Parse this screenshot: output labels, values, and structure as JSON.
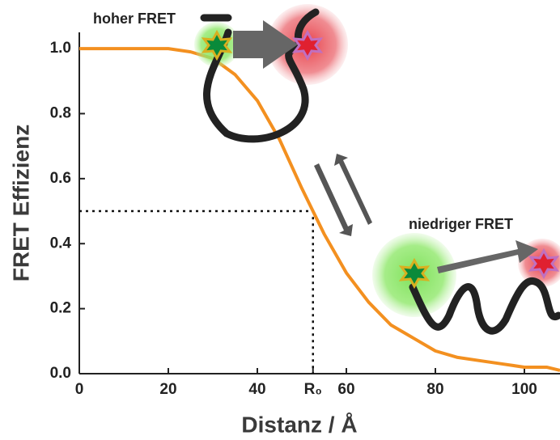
{
  "chart_data": {
    "type": "line",
    "xlabel": "Distanz / Å",
    "ylabel": "FRET Effizienz",
    "annotations": [
      "hoher FRET",
      "niedriger FRET"
    ],
    "x": [
      0,
      5,
      10,
      15,
      20,
      25,
      30,
      35,
      40,
      45,
      50,
      55,
      60,
      65,
      70,
      75,
      80,
      85,
      90,
      95,
      100,
      105,
      108
    ],
    "values": [
      1.0,
      1.0,
      1.0,
      1.0,
      1.0,
      0.99,
      0.97,
      0.92,
      0.84,
      0.72,
      0.57,
      0.43,
      0.31,
      0.22,
      0.15,
      0.11,
      0.07,
      0.05,
      0.04,
      0.03,
      0.02,
      0.02,
      0.01
    ],
    "color": "#f39020",
    "xlim": [
      0,
      108
    ],
    "ylim": [
      0,
      1.05
    ],
    "xticks": [
      0,
      20,
      40,
      {
        "value": 52.5,
        "label": "R₀"
      },
      60,
      80,
      100
    ],
    "yticks": [
      {
        "value": 0,
        "label": "0.0"
      },
      0.2,
      0.4,
      0.6,
      0.8,
      {
        "value": 1,
        "label": "1.0"
      }
    ],
    "guide": {
      "x": 52.5,
      "y": 0.5
    }
  }
}
